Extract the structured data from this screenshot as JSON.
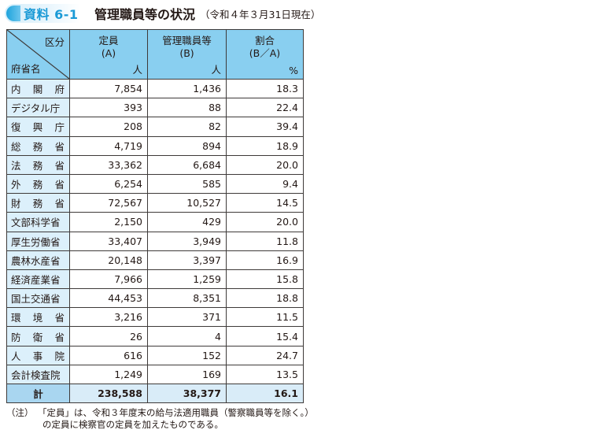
{
  "header": {
    "badge": "資料 6-1",
    "title": "管理職員等の状況",
    "subtitle": "（令和４年３月31日現在）"
  },
  "table": {
    "corner_top": "区分",
    "corner_bottom": "府省名",
    "columns": [
      {
        "line1": "定員",
        "line2": "(A)",
        "unit": "人"
      },
      {
        "line1": "管理職員等",
        "line2": "(B)",
        "unit": "人"
      },
      {
        "line1": "割合",
        "line2": "(B／A)",
        "unit": "%"
      }
    ],
    "rows": [
      {
        "name": "内閣府",
        "spaced": true,
        "a": "7,854",
        "b": "1,436",
        "ratio": "18.3"
      },
      {
        "name": "デジタル庁",
        "spaced": false,
        "a": "393",
        "b": "88",
        "ratio": "22.4"
      },
      {
        "name": "復興庁",
        "spaced": true,
        "a": "208",
        "b": "82",
        "ratio": "39.4"
      },
      {
        "name": "総務省",
        "spaced": true,
        "a": "4,719",
        "b": "894",
        "ratio": "18.9"
      },
      {
        "name": "法務省",
        "spaced": true,
        "a": "33,362",
        "b": "6,684",
        "ratio": "20.0"
      },
      {
        "name": "外務省",
        "spaced": true,
        "a": "6,254",
        "b": "585",
        "ratio": "9.4"
      },
      {
        "name": "財務省",
        "spaced": true,
        "a": "72,567",
        "b": "10,527",
        "ratio": "14.5"
      },
      {
        "name": "文部科学省",
        "spaced": false,
        "a": "2,150",
        "b": "429",
        "ratio": "20.0"
      },
      {
        "name": "厚生労働省",
        "spaced": false,
        "a": "33,407",
        "b": "3,949",
        "ratio": "11.8"
      },
      {
        "name": "農林水産省",
        "spaced": false,
        "a": "20,148",
        "b": "3,397",
        "ratio": "16.9"
      },
      {
        "name": "経済産業省",
        "spaced": false,
        "a": "7,966",
        "b": "1,259",
        "ratio": "15.8"
      },
      {
        "name": "国土交通省",
        "spaced": false,
        "a": "44,453",
        "b": "8,351",
        "ratio": "18.8"
      },
      {
        "name": "環境省",
        "spaced": true,
        "a": "3,216",
        "b": "371",
        "ratio": "11.5"
      },
      {
        "name": "防衛省",
        "spaced": true,
        "a": "26",
        "b": "4",
        "ratio": "15.4"
      },
      {
        "name": "人事院",
        "spaced": true,
        "a": "616",
        "b": "152",
        "ratio": "24.7"
      },
      {
        "name": "会計検査院",
        "spaced": false,
        "a": "1,249",
        "b": "169",
        "ratio": "13.5"
      }
    ],
    "total": {
      "name": "計",
      "a": "238,588",
      "b": "38,377",
      "ratio": "16.1"
    }
  },
  "note": {
    "label": "（注）",
    "line1": "「定員」は、令和３年度末の給与法適用職員（警察職員等を除く。）",
    "line2": "の定員に検察官の定員を加えたものである。"
  },
  "colors": {
    "header_bg": "#89cff0",
    "name_bg": "#dcf0fb",
    "total_bg": "#d9ecf8",
    "badge_text": "#1b9ad6"
  }
}
